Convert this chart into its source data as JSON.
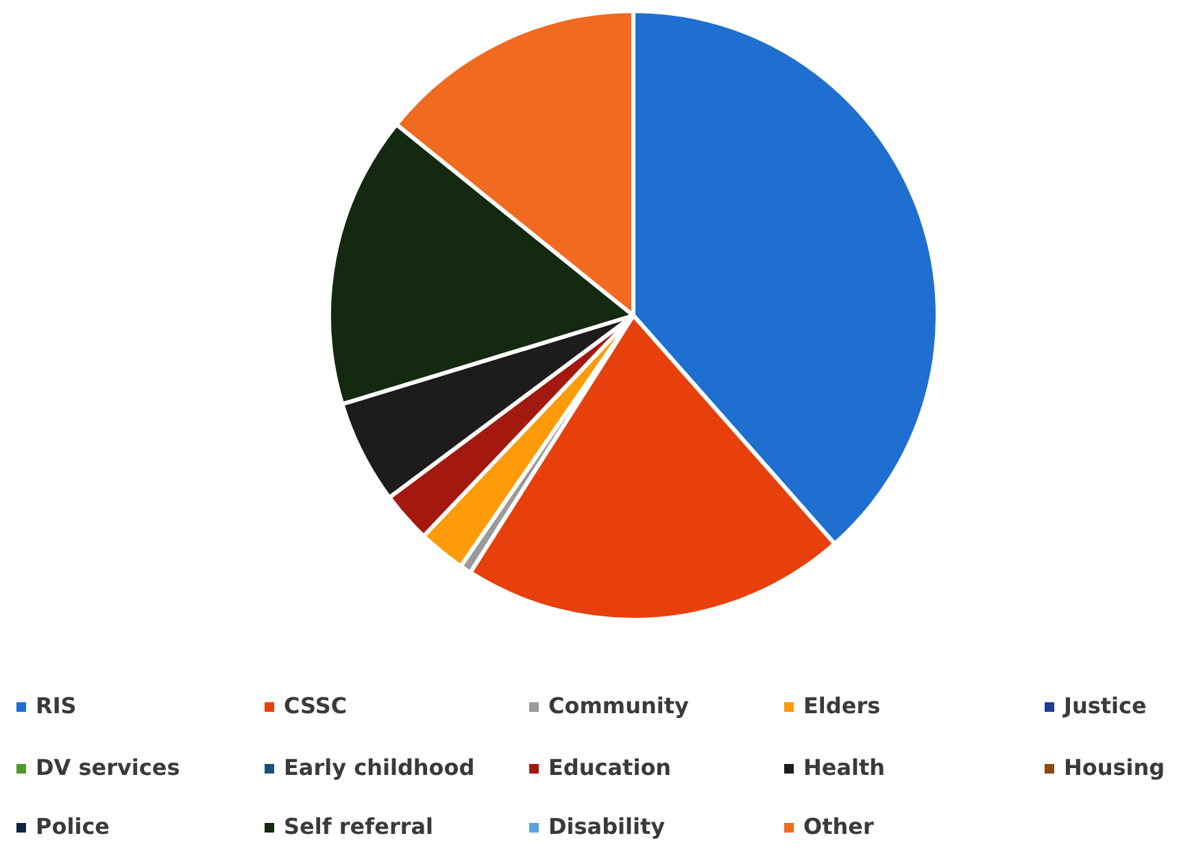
{
  "chart_data": {
    "type": "pie",
    "categories": [
      "RIS",
      "CSSC",
      "Community",
      "Elders",
      "Justice",
      "DV services",
      "Early childhood",
      "Education",
      "Health",
      "Housing",
      "Police",
      "Self referral",
      "Disability",
      "Other"
    ],
    "values": [
      38.5,
      20.5,
      0.6,
      2.5,
      0,
      0,
      0,
      2.7,
      5.5,
      0,
      0,
      15.5,
      0,
      14.2
    ],
    "colors": [
      "#1f6fd0",
      "#e8400c",
      "#9a9a9a",
      "#ff9a0a",
      "#1d3f94",
      "#4f9a2a",
      "#1a4f7a",
      "#a3190f",
      "#1e1b1c",
      "#8a4a12",
      "#0e2740",
      "#142a10",
      "#5aa2e0",
      "#f06a20"
    ],
    "legend": "bottom"
  }
}
